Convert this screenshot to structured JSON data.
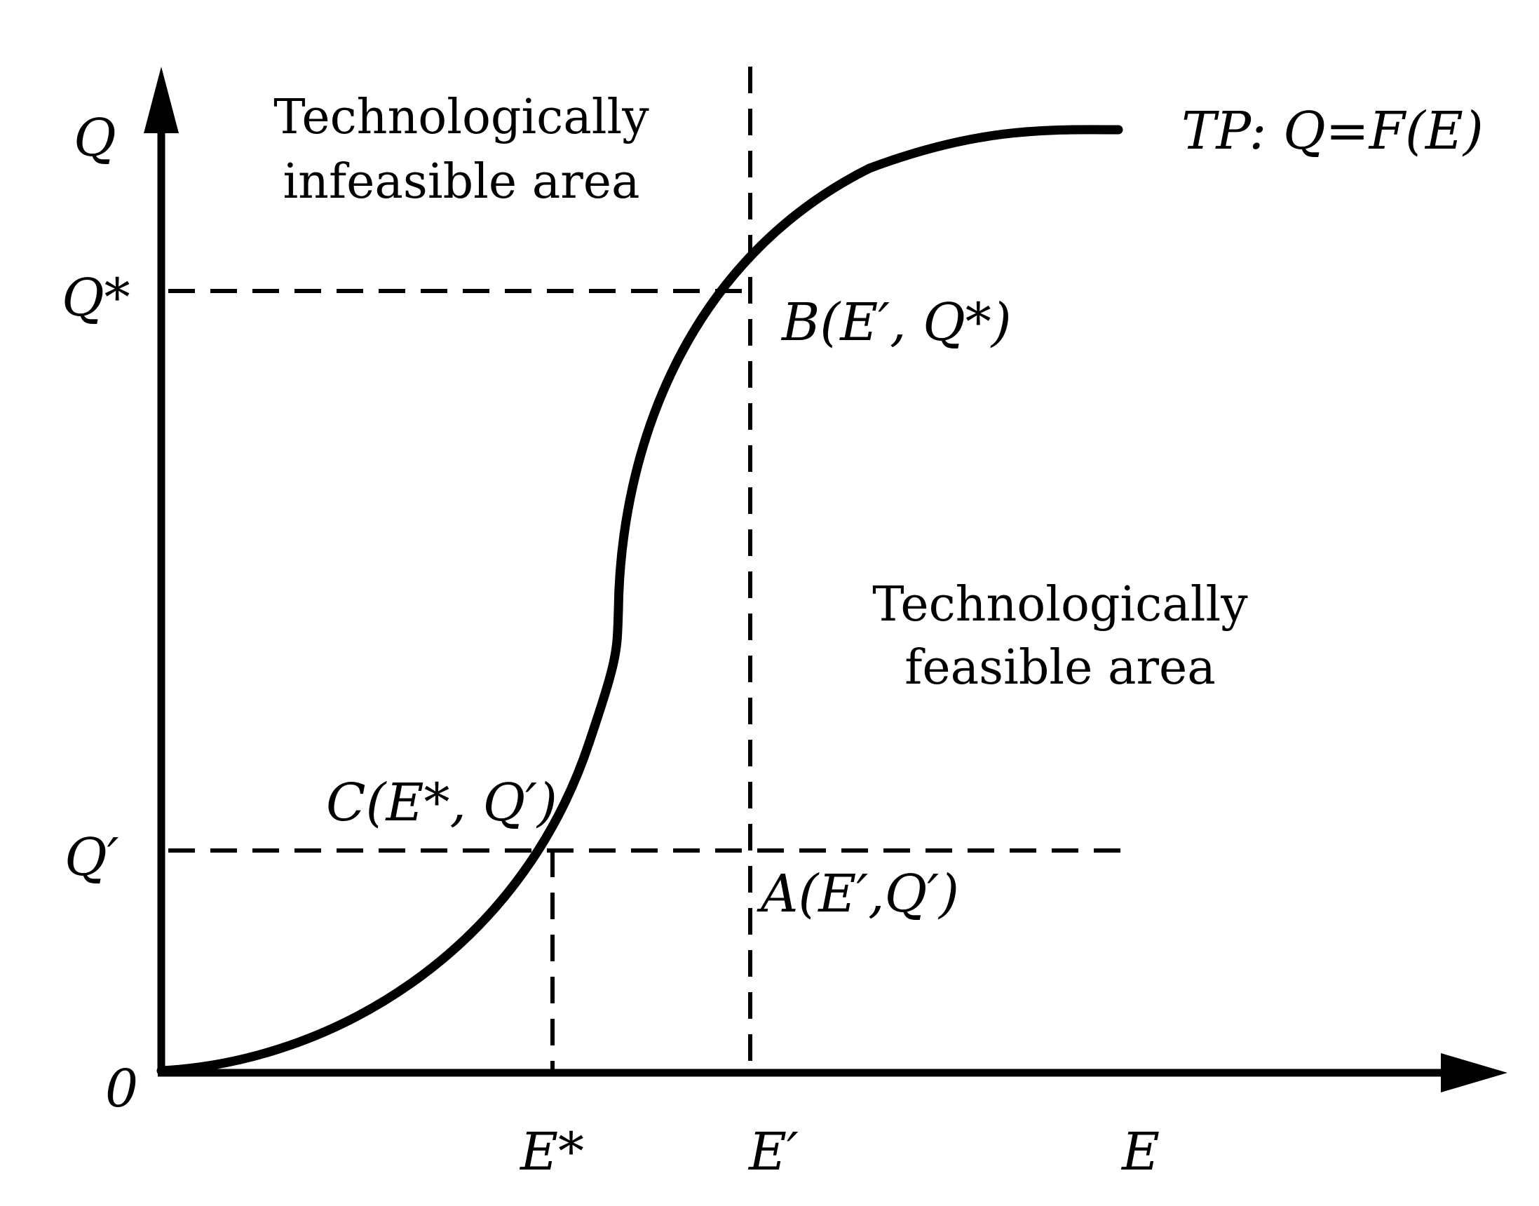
{
  "axes": {
    "y_label": "Q",
    "x_label": "E",
    "origin_label": "0"
  },
  "ticks": {
    "q_star": "Q*",
    "q_prime": "Q′",
    "e_star": "E*",
    "e_prime": "E′"
  },
  "curve": {
    "label": "TP: Q=F(E)"
  },
  "points": {
    "a": "A(E′,Q′)",
    "b": "B(E′, Q*)",
    "c": "C(E*, Q′)"
  },
  "regions": {
    "infeasible_line1": "Technologically",
    "infeasible_line2": "infeasible area",
    "feasible_line1": "Technologically",
    "feasible_line2": "feasible area"
  },
  "colors": {
    "stroke": "#000000",
    "background": "#ffffff"
  }
}
